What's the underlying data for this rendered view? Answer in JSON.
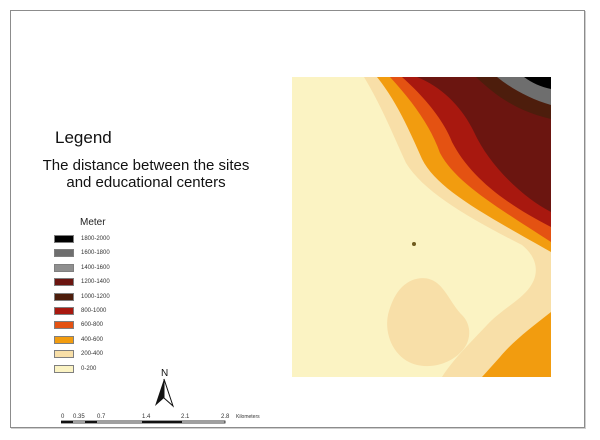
{
  "legend": {
    "title": "Legend",
    "subtitle": "The distance between the sites and educational centers",
    "unit": "Meter",
    "classes": [
      {
        "label": "1800-2000",
        "color": "#000000"
      },
      {
        "label": "1600-1800",
        "color": "#6e6e6e"
      },
      {
        "label": "1400-1600",
        "color": "#8f8f8f"
      },
      {
        "label": "1200-1400",
        "color": "#6b1510"
      },
      {
        "label": "1000-1200",
        "color": "#4d1d0c"
      },
      {
        "label": "800-1000",
        "color": "#a8180f"
      },
      {
        "label": "600-800",
        "color": "#e45212"
      },
      {
        "label": "400-600",
        "color": "#f29c0f"
      },
      {
        "label": "200-400",
        "color": "#f8dfa8"
      },
      {
        "label": "0-200",
        "color": "#fbf3c3"
      }
    ]
  },
  "north_arrow": {
    "label": "N"
  },
  "scale_bar": {
    "ticks": [
      "0",
      "0.35",
      "0.7",
      "1.4",
      "2.1",
      "2.8"
    ],
    "unit": "Kilometers"
  }
}
